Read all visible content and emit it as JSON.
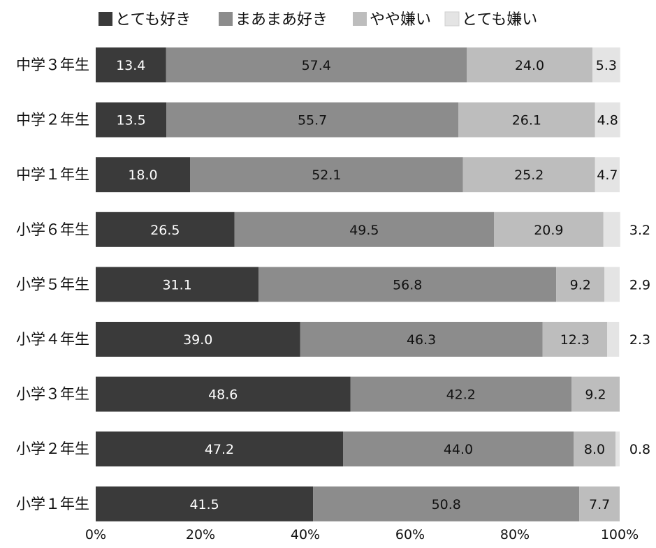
{
  "chart_data": {
    "type": "bar",
    "orientation": "horizontal",
    "stacked": true,
    "title": "",
    "xlabel": "",
    "ylabel": "",
    "xlim": [
      0,
      100
    ],
    "x_ticks": [
      "0%",
      "20%",
      "40%",
      "60%",
      "80%",
      "100%"
    ],
    "legend_placement": "top",
    "grid": false,
    "categories": [
      "中学３年生",
      "中学２年生",
      "中学１年生",
      "小学６年生",
      "小学５年生",
      "小学４年生",
      "小学３年生",
      "小学２年生",
      "小学１年生"
    ],
    "series": [
      {
        "name": "とても好き",
        "color": "#3a3a3a",
        "label_color": "#ffffff",
        "values": [
          13.4,
          13.5,
          18.0,
          26.5,
          31.1,
          39.0,
          48.6,
          47.2,
          41.5
        ]
      },
      {
        "name": "まあまあ好き",
        "color": "#8c8c8c",
        "label_color": "#111111",
        "values": [
          57.4,
          55.7,
          52.1,
          49.5,
          56.8,
          46.3,
          42.2,
          44.0,
          50.8
        ]
      },
      {
        "name": "やや嫌い",
        "color": "#bdbdbd",
        "label_color": "#111111",
        "values": [
          24.0,
          26.1,
          25.2,
          20.9,
          9.2,
          12.3,
          9.2,
          8.0,
          7.7
        ]
      },
      {
        "name": "とても嫌い",
        "color": "#e4e4e4",
        "label_color": "#111111",
        "values": [
          5.3,
          4.8,
          4.7,
          3.2,
          2.9,
          2.3,
          null,
          0.8,
          null
        ]
      }
    ]
  }
}
